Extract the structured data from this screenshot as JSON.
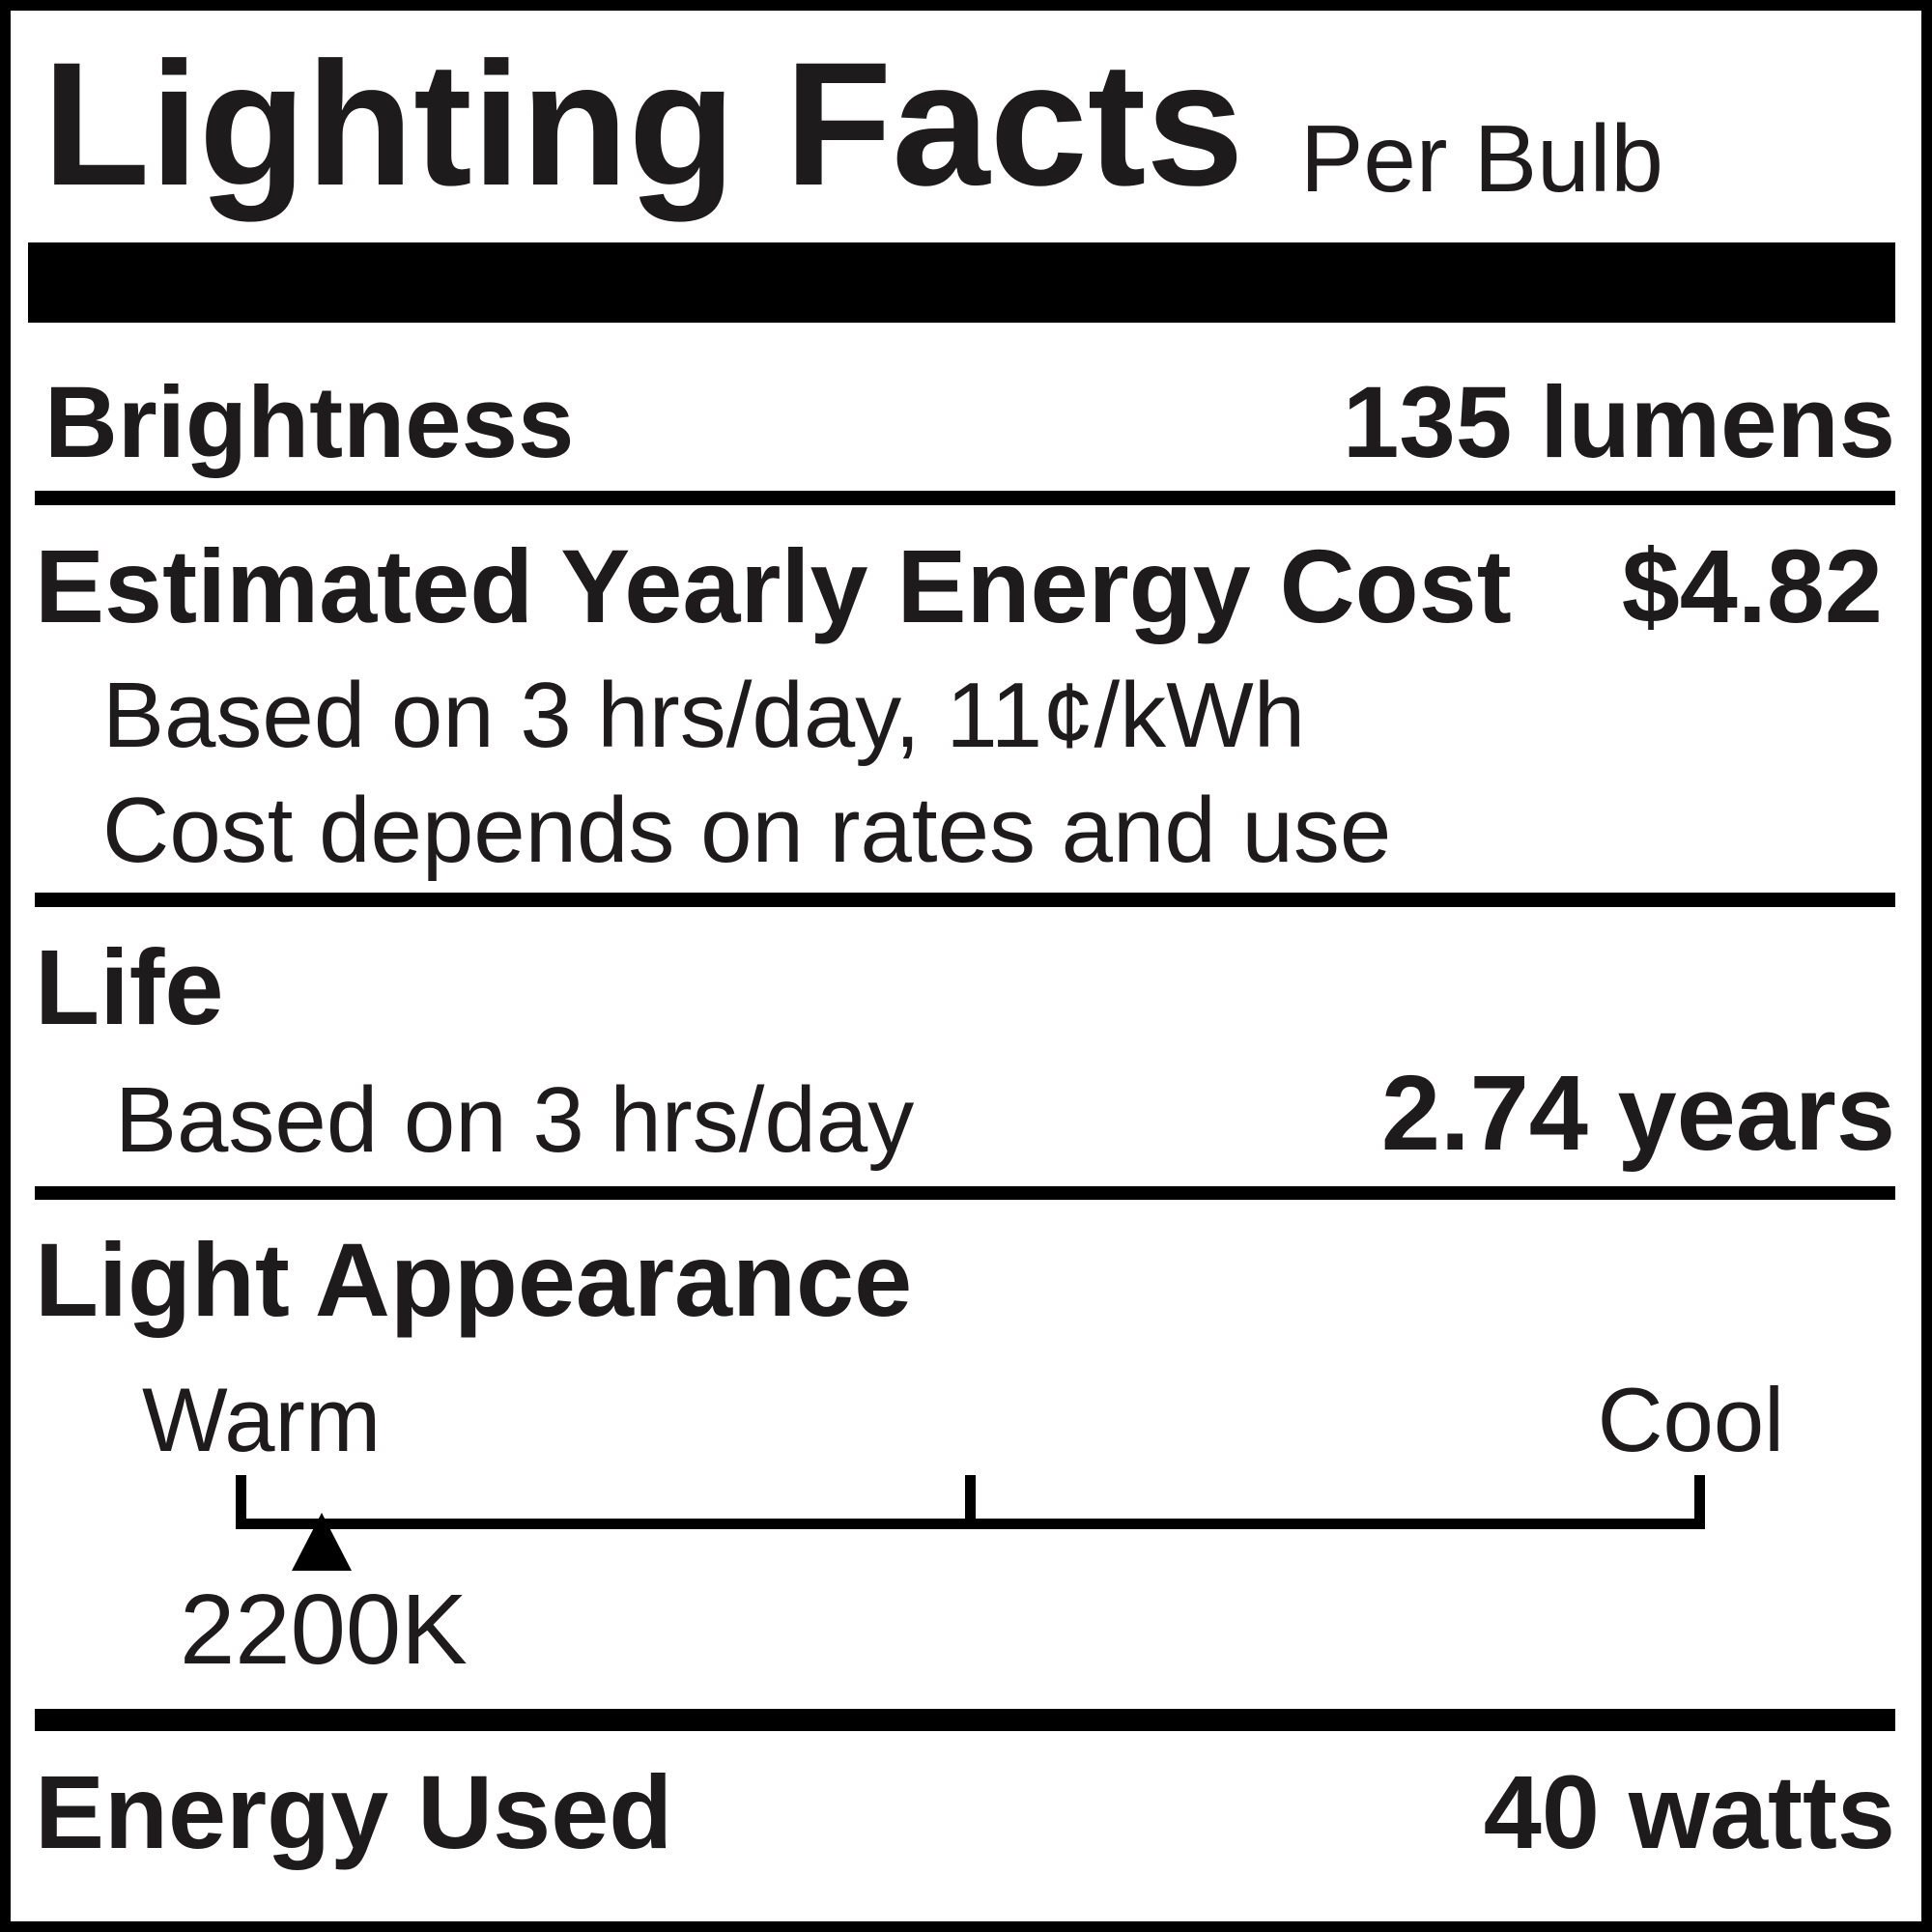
{
  "header": {
    "title": "Lighting Facts",
    "subtitle": "Per Bulb"
  },
  "brightness": {
    "label": "Brightness",
    "value": "135 lumens"
  },
  "energy_cost": {
    "label": "Estimated Yearly Energy Cost",
    "value": "$4.82",
    "note1": "Based on 3 hrs/day, 11¢/kWh",
    "note2": "Cost depends on rates and use"
  },
  "life": {
    "label": "Life",
    "note": "Based on 3 hrs/day",
    "value": "2.74 years"
  },
  "light_appearance": {
    "label": "Light Appearance",
    "warm_label": "Warm",
    "cool_label": "Cool",
    "value": "2200K",
    "scale_min_k": 2700,
    "scale_max_k": 6500
  },
  "energy_used": {
    "label": "Energy Used",
    "value": "40 watts"
  }
}
